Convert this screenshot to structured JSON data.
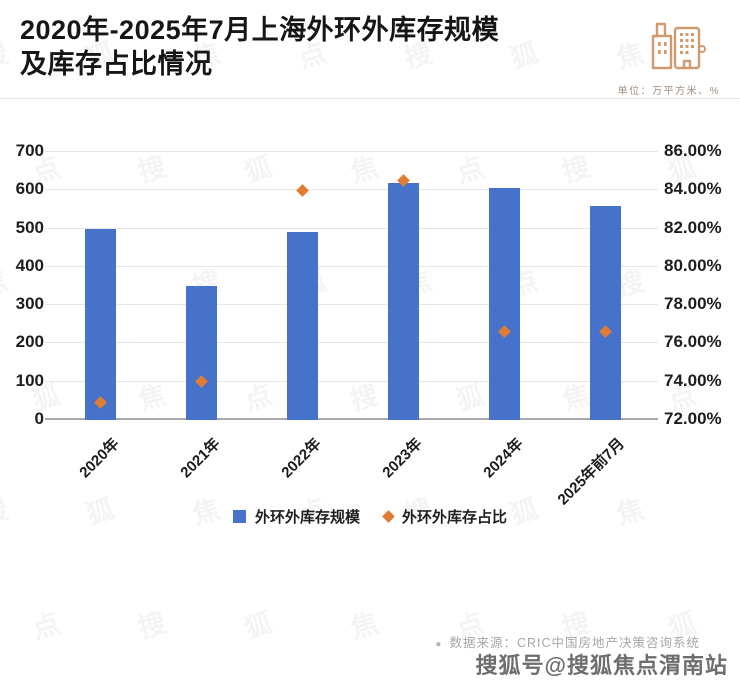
{
  "header": {
    "title_line1": "2020年-2025年7月上海外环外库存规模",
    "title_line2": "及库存占比情况",
    "unit_label": "单位：万平方米、%"
  },
  "chart_data": {
    "type": "bar",
    "subtype": "combo-bar-with-scatter-points",
    "title": "2020年-2025年7月上海外环外库存规模及库存占比情况",
    "categories": [
      "2020年",
      "2021年",
      "2022年",
      "2023年",
      "2024年",
      "2025年前7月"
    ],
    "series": [
      {
        "name": "外环外库存规模",
        "type": "bar",
        "axis": "left",
        "color": "#4673C9",
        "values": [
          500,
          350,
          490,
          620,
          605,
          560
        ]
      },
      {
        "name": "外环外库存占比",
        "type": "scatter",
        "axis": "right",
        "color": "#E07C33",
        "values": [
          72.9,
          74.0,
          84.0,
          84.5,
          76.6,
          76.6
        ]
      }
    ],
    "left_axis": {
      "min": 0,
      "max": 700,
      "step": 100,
      "tick_labels": [
        "0",
        "100",
        "200",
        "300",
        "400",
        "500",
        "600",
        "700"
      ]
    },
    "right_axis": {
      "min": 72,
      "max": 86,
      "step": 2,
      "tick_labels": [
        "72.00%",
        "74.00%",
        "76.00%",
        "78.00%",
        "80.00%",
        "82.00%",
        "84.00%",
        "86.00%"
      ]
    },
    "grid": true,
    "legend_position": "bottom",
    "xlabel": "",
    "ylabel": ""
  },
  "legend": {
    "items": [
      {
        "label": "外环外库存规模",
        "marker": "square",
        "color": "#4673C9"
      },
      {
        "label": "外环外库存占比",
        "marker": "diamond",
        "color": "#E07C33"
      }
    ]
  },
  "footer": {
    "bullet": "●",
    "source": "数据来源：CRIC中国房地产决策咨询系统",
    "brand": "搜狐号@搜狐焦点渭南站"
  },
  "watermark": {
    "glyphs": "搜狐焦点"
  }
}
